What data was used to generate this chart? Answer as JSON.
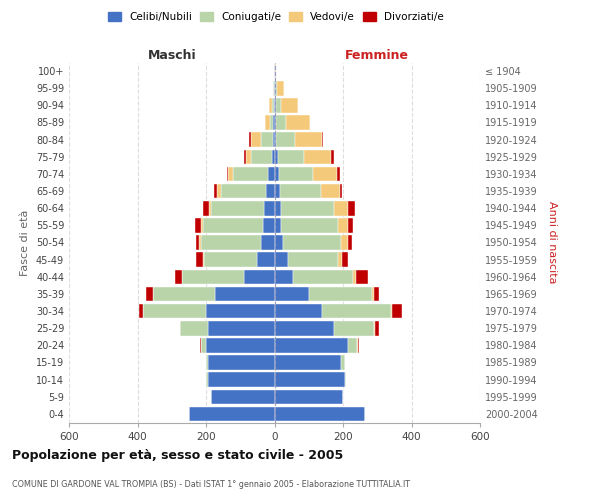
{
  "age_groups": [
    "0-4",
    "5-9",
    "10-14",
    "15-19",
    "20-24",
    "25-29",
    "30-34",
    "35-39",
    "40-44",
    "45-49",
    "50-54",
    "55-59",
    "60-64",
    "65-69",
    "70-74",
    "75-79",
    "80-84",
    "85-89",
    "90-94",
    "95-99",
    "100+"
  ],
  "birth_years": [
    "2000-2004",
    "1995-1999",
    "1990-1994",
    "1985-1989",
    "1980-1984",
    "1975-1979",
    "1970-1974",
    "1965-1969",
    "1960-1964",
    "1955-1959",
    "1950-1954",
    "1945-1949",
    "1940-1944",
    "1935-1939",
    "1930-1934",
    "1925-1929",
    "1920-1924",
    "1915-1919",
    "1910-1914",
    "1905-1909",
    "≤ 1904"
  ],
  "colors": {
    "celibi": "#4472C4",
    "coniugati": "#B8D4A8",
    "vedovi": "#F5C97A",
    "divorziati": "#C00000"
  },
  "maschi": {
    "celibi": [
      250,
      185,
      195,
      195,
      200,
      195,
      200,
      175,
      90,
      50,
      40,
      35,
      30,
      25,
      20,
      8,
      5,
      3,
      2,
      1,
      1
    ],
    "coniugati": [
      0,
      0,
      5,
      5,
      15,
      80,
      185,
      180,
      180,
      155,
      175,
      175,
      155,
      130,
      100,
      60,
      35,
      10,
      5,
      2,
      0
    ],
    "vedovi": [
      0,
      0,
      0,
      0,
      0,
      0,
      0,
      0,
      0,
      5,
      5,
      5,
      5,
      12,
      15,
      15,
      30,
      15,
      10,
      2,
      0
    ],
    "divorziati": [
      0,
      0,
      0,
      0,
      3,
      0,
      10,
      20,
      20,
      20,
      10,
      18,
      20,
      10,
      5,
      5,
      3,
      0,
      0,
      0,
      0
    ]
  },
  "femmine": {
    "celibi": [
      265,
      200,
      205,
      195,
      215,
      175,
      140,
      100,
      55,
      40,
      25,
      20,
      20,
      15,
      12,
      10,
      5,
      5,
      3,
      2,
      1
    ],
    "coniugati": [
      0,
      0,
      5,
      10,
      25,
      115,
      200,
      185,
      175,
      145,
      170,
      165,
      155,
      120,
      100,
      75,
      55,
      30,
      15,
      5,
      0
    ],
    "vedovi": [
      0,
      0,
      0,
      0,
      3,
      3,
      3,
      5,
      8,
      12,
      20,
      30,
      40,
      55,
      70,
      80,
      80,
      70,
      50,
      20,
      2
    ],
    "divorziati": [
      0,
      0,
      0,
      0,
      5,
      12,
      30,
      15,
      35,
      18,
      12,
      15,
      20,
      8,
      8,
      8,
      3,
      0,
      0,
      0,
      0
    ]
  },
  "xlim": 600,
  "title": "Popolazione per età, sesso e stato civile - 2005",
  "subtitle": "COMUNE DI GARDONE VAL TROMPIA (BS) - Dati ISTAT 1° gennaio 2005 - Elaborazione TUTTITALIA.IT",
  "ylabel_left": "Fasce di età",
  "ylabel_right": "Anni di nascita",
  "xlabel_left": "Maschi",
  "xlabel_right": "Femmine",
  "legend_labels": [
    "Celibi/Nubili",
    "Coniugati/e",
    "Vedovi/e",
    "Divorziati/e"
  ],
  "legend_colors": [
    "#4472C4",
    "#B8D4A8",
    "#F5C97A",
    "#C00000"
  ],
  "bg_color": "#FFFFFF",
  "plot_bg": "#FFFFFF"
}
